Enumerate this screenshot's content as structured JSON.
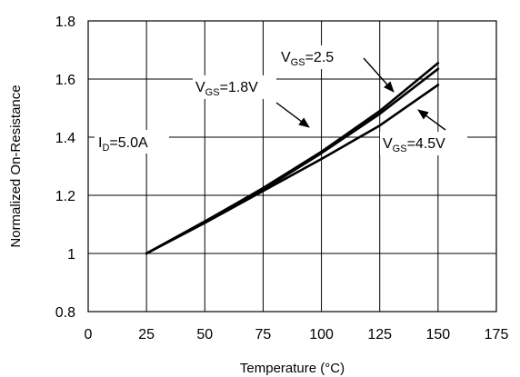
{
  "chart_data": {
    "type": "line",
    "title": "",
    "xlabel": "Temperature (°C)",
    "ylabel": "Normalized On-Resistance",
    "xlim": [
      0,
      175
    ],
    "ylim": [
      0.8,
      1.8
    ],
    "x_ticks": [
      "0",
      "25",
      "50",
      "75",
      "100",
      "125",
      "150",
      "175"
    ],
    "y_ticks": [
      "0.8",
      "1",
      "1.2",
      "1.4",
      "1.6",
      "1.8"
    ],
    "grid": true,
    "series": [
      {
        "name": "VGS=1.8V",
        "x": [
          25,
          50,
          75,
          100,
          125,
          150
        ],
        "y": [
          1.0,
          1.11,
          1.225,
          1.35,
          1.49,
          1.655
        ]
      },
      {
        "name": "VGS=2.5",
        "x": [
          25,
          50,
          75,
          100,
          125,
          150
        ],
        "y": [
          1.0,
          1.11,
          1.22,
          1.345,
          1.48,
          1.635
        ]
      },
      {
        "name": "VGS=4.5V",
        "x": [
          25,
          50,
          75,
          100,
          125,
          150
        ],
        "y": [
          1.0,
          1.105,
          1.215,
          1.325,
          1.44,
          1.58
        ]
      }
    ],
    "annotations": {
      "id": {
        "main": "I",
        "sub": "D",
        "rest": "=5.0A"
      },
      "vgs18": {
        "main": "V",
        "sub": "GS",
        "rest": "=1.8V"
      },
      "vgs25": {
        "main": "V",
        "sub": "GS",
        "rest": "=2.5"
      },
      "vgs45": {
        "main": "V",
        "sub": "GS",
        "rest": "=4.5V"
      }
    }
  }
}
